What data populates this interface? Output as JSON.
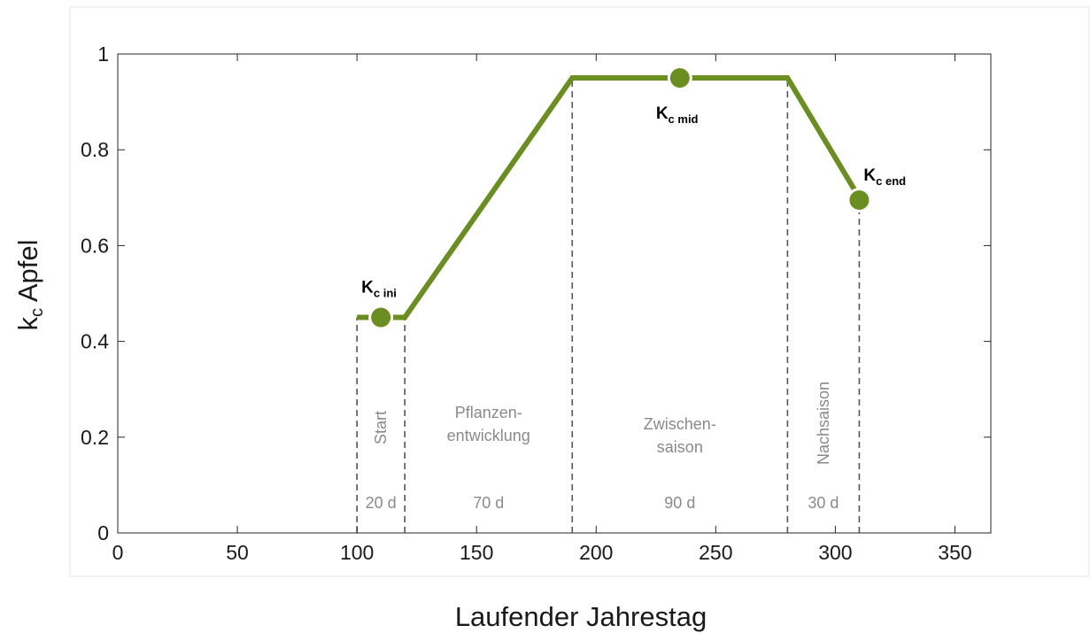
{
  "chart_data": {
    "type": "line",
    "xlabel": "Laufender Jahrestag",
    "ylabel_main": "k",
    "ylabel_sub": "c",
    "ylabel_rest": " Apfel",
    "xlim": [
      0,
      365
    ],
    "ylim": [
      0,
      1
    ],
    "xticks": [
      0,
      50,
      100,
      150,
      200,
      250,
      300,
      350
    ],
    "xtick_labels": [
      "0",
      "50",
      "100",
      "150",
      "200",
      "250",
      "300",
      "350"
    ],
    "yticks": [
      0,
      0.2,
      0.4,
      0.6,
      0.8,
      1
    ],
    "ytick_labels": [
      "0",
      "0.2",
      "0.4",
      "0.6",
      "0.8",
      "1"
    ],
    "grid": false,
    "line_color": "#6b8e23",
    "kc_curve": {
      "x": [
        100,
        120,
        190,
        280,
        310
      ],
      "y": [
        0.45,
        0.45,
        0.95,
        0.95,
        0.7
      ]
    },
    "kc_points": [
      {
        "main": "K",
        "sub": "c ini",
        "x": 110,
        "y": 0.45
      },
      {
        "main": "K",
        "sub": "c mid",
        "x": 235,
        "y": 0.95
      },
      {
        "main": "K",
        "sub": "c end",
        "x": 310,
        "y": 0.695
      }
    ],
    "phase_boundaries": [
      100,
      120,
      190,
      280,
      310
    ],
    "phases": [
      {
        "label_lines": [
          "Start"
        ],
        "rotated": true,
        "duration": "20 d"
      },
      {
        "label_lines": [
          "Pflanzen-",
          "entwicklung"
        ],
        "rotated": false,
        "duration": "70 d"
      },
      {
        "label_lines": [
          "Zwischen-",
          "saison"
        ],
        "rotated": false,
        "duration": "90 d"
      },
      {
        "label_lines": [
          "Nachsaison"
        ],
        "rotated": true,
        "duration": "30 d"
      }
    ]
  }
}
